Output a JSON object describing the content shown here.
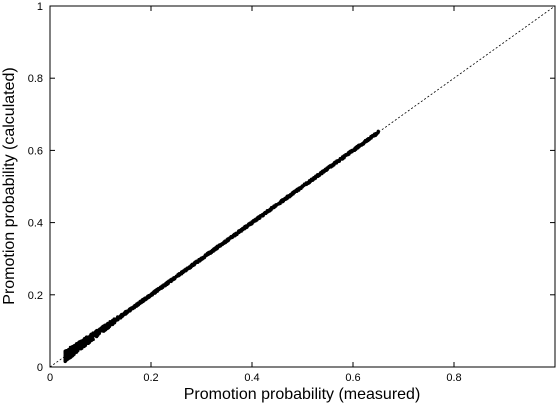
{
  "chart_data": {
    "type": "scatter",
    "xlabel": "Promotion probability (measured)",
    "ylabel": "Promotion probability (calculated)",
    "xlim": [
      0,
      1
    ],
    "ylim": [
      0,
      1
    ],
    "x_ticks": [
      "0",
      "0.2",
      "0.4",
      "0.6",
      "0.8",
      "1"
    ],
    "y_ticks": [
      "0",
      "0.2",
      "0.4",
      "0.6",
      "0.8",
      "1"
    ],
    "x_tick_values": [
      0,
      0.2,
      0.4,
      0.6,
      0.8,
      1
    ],
    "y_tick_values": [
      0,
      0.2,
      0.4,
      0.6,
      0.8,
      1
    ],
    "x_tick_labels_shown": [
      true,
      true,
      true,
      true,
      true,
      false
    ],
    "y_tick_labels_shown": [
      true,
      true,
      true,
      true,
      true,
      true
    ],
    "reference_line": {
      "from": [
        0,
        0
      ],
      "to": [
        1,
        1
      ],
      "style": "dashed"
    },
    "grid": false,
    "legend": "none",
    "point_color": "#000000",
    "point_range": {
      "x": [
        0.03,
        0.65
      ],
      "y": [
        0.03,
        0.65
      ]
    }
  }
}
